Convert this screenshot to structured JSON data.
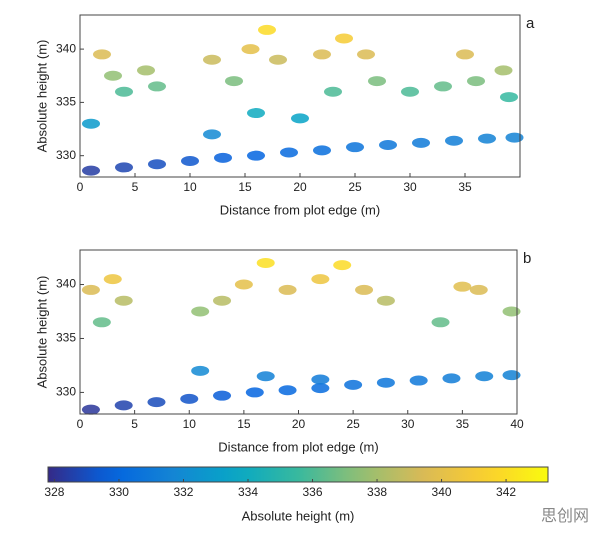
{
  "chart_data": [
    {
      "type": "scatter",
      "label": "a",
      "xlabel": "Distance from plot edge (m)",
      "ylabel": "Absolute height (m)",
      "xlim": [
        0,
        40
      ],
      "ylim": [
        328,
        343.2
      ],
      "xticks": [
        0,
        5,
        10,
        15,
        20,
        25,
        30,
        35
      ],
      "yticks": [
        330,
        335,
        340
      ],
      "colormap": "parula",
      "x": [
        1,
        4,
        7,
        10,
        13,
        16,
        19,
        22,
        25,
        28,
        31,
        34,
        37,
        39.5,
        2,
        3,
        1,
        4,
        7,
        6,
        12,
        14,
        15.5,
        17,
        18,
        16,
        22,
        24,
        26,
        23,
        27,
        30,
        33,
        35,
        36,
        38.5,
        39,
        12,
        20
      ],
      "y": [
        328.6,
        328.9,
        329.2,
        329.5,
        329.8,
        330,
        330.3,
        330.5,
        330.8,
        331,
        331.2,
        331.4,
        331.6,
        331.7,
        339.5,
        337.5,
        333,
        336,
        336.5,
        338,
        339,
        337,
        340,
        341.8,
        339,
        334,
        339.5,
        341,
        339.5,
        336,
        337,
        336,
        336.5,
        339.5,
        337,
        338,
        335.5,
        332,
        333.5
      ]
    },
    {
      "type": "scatter",
      "label": "b",
      "xlabel": "Distance from plot edge (m)",
      "ylabel": "Absolute height (m)",
      "xlim": [
        0,
        40
      ],
      "ylim": [
        328,
        343.2
      ],
      "xticks": [
        0,
        5,
        10,
        15,
        20,
        25,
        30,
        35,
        40
      ],
      "yticks": [
        330,
        335,
        340
      ],
      "colormap": "parula",
      "x": [
        1,
        4,
        7,
        10,
        13,
        16,
        19,
        22,
        25,
        28,
        31,
        34,
        37,
        39.5,
        11,
        17,
        22,
        1,
        3,
        4,
        2,
        11,
        13,
        15,
        17,
        19,
        22,
        24,
        26,
        28,
        33,
        35,
        36.5,
        39.5
      ],
      "y": [
        328.4,
        328.8,
        329.1,
        329.4,
        329.7,
        330,
        330.2,
        330.4,
        330.7,
        330.9,
        331.1,
        331.3,
        331.5,
        331.6,
        332,
        331.5,
        331.2,
        339.5,
        340.5,
        338.5,
        336.5,
        337.5,
        338.5,
        340,
        342,
        339.5,
        340.5,
        341.8,
        339.5,
        338.5,
        336.5,
        339.8,
        339.5,
        337.5
      ]
    },
    {
      "type": "colorbar",
      "label": "Absolute height (m)",
      "lim": [
        327.8,
        343.3
      ],
      "ticks": [
        328,
        330,
        332,
        334,
        336,
        338,
        340,
        342
      ],
      "colormap": "parula"
    }
  ],
  "watermark": "思创网"
}
